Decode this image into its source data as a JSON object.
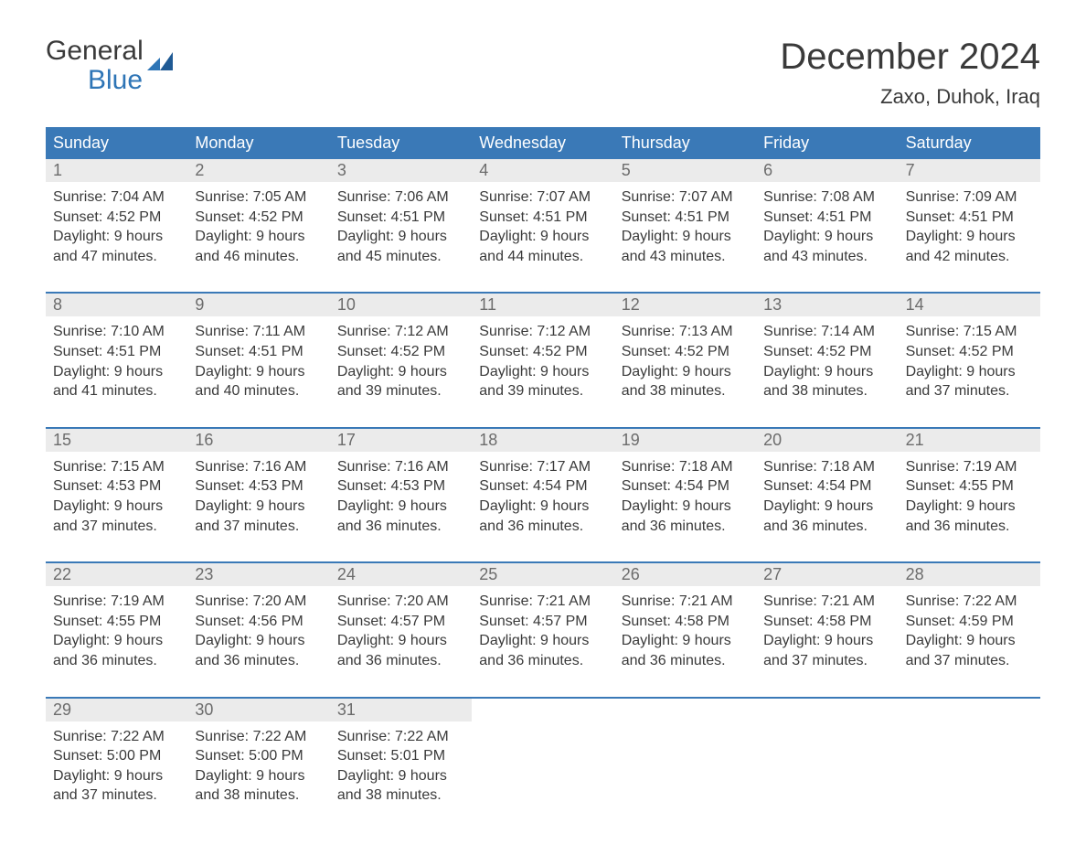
{
  "logo": {
    "word1": "General",
    "word2": "Blue"
  },
  "title": "December 2024",
  "location": "Zaxo, Duhok, Iraq",
  "colors": {
    "header_bg": "#3a79b7",
    "header_text": "#ffffff",
    "daynum_bg": "#ebebeb",
    "daynum_text": "#6c6c6c",
    "body_text": "#3a3a3a",
    "rule": "#3a79b7",
    "logo_blue": "#2e75b6"
  },
  "weekdays": [
    "Sunday",
    "Monday",
    "Tuesday",
    "Wednesday",
    "Thursday",
    "Friday",
    "Saturday"
  ],
  "weeks": [
    [
      {
        "day": "1",
        "sunrise": "7:04 AM",
        "sunset": "4:52 PM",
        "daylight": "9 hours and 47 minutes."
      },
      {
        "day": "2",
        "sunrise": "7:05 AM",
        "sunset": "4:52 PM",
        "daylight": "9 hours and 46 minutes."
      },
      {
        "day": "3",
        "sunrise": "7:06 AM",
        "sunset": "4:51 PM",
        "daylight": "9 hours and 45 minutes."
      },
      {
        "day": "4",
        "sunrise": "7:07 AM",
        "sunset": "4:51 PM",
        "daylight": "9 hours and 44 minutes."
      },
      {
        "day": "5",
        "sunrise": "7:07 AM",
        "sunset": "4:51 PM",
        "daylight": "9 hours and 43 minutes."
      },
      {
        "day": "6",
        "sunrise": "7:08 AM",
        "sunset": "4:51 PM",
        "daylight": "9 hours and 43 minutes."
      },
      {
        "day": "7",
        "sunrise": "7:09 AM",
        "sunset": "4:51 PM",
        "daylight": "9 hours and 42 minutes."
      }
    ],
    [
      {
        "day": "8",
        "sunrise": "7:10 AM",
        "sunset": "4:51 PM",
        "daylight": "9 hours and 41 minutes."
      },
      {
        "day": "9",
        "sunrise": "7:11 AM",
        "sunset": "4:51 PM",
        "daylight": "9 hours and 40 minutes."
      },
      {
        "day": "10",
        "sunrise": "7:12 AM",
        "sunset": "4:52 PM",
        "daylight": "9 hours and 39 minutes."
      },
      {
        "day": "11",
        "sunrise": "7:12 AM",
        "sunset": "4:52 PM",
        "daylight": "9 hours and 39 minutes."
      },
      {
        "day": "12",
        "sunrise": "7:13 AM",
        "sunset": "4:52 PM",
        "daylight": "9 hours and 38 minutes."
      },
      {
        "day": "13",
        "sunrise": "7:14 AM",
        "sunset": "4:52 PM",
        "daylight": "9 hours and 38 minutes."
      },
      {
        "day": "14",
        "sunrise": "7:15 AM",
        "sunset": "4:52 PM",
        "daylight": "9 hours and 37 minutes."
      }
    ],
    [
      {
        "day": "15",
        "sunrise": "7:15 AM",
        "sunset": "4:53 PM",
        "daylight": "9 hours and 37 minutes."
      },
      {
        "day": "16",
        "sunrise": "7:16 AM",
        "sunset": "4:53 PM",
        "daylight": "9 hours and 37 minutes."
      },
      {
        "day": "17",
        "sunrise": "7:16 AM",
        "sunset": "4:53 PM",
        "daylight": "9 hours and 36 minutes."
      },
      {
        "day": "18",
        "sunrise": "7:17 AM",
        "sunset": "4:54 PM",
        "daylight": "9 hours and 36 minutes."
      },
      {
        "day": "19",
        "sunrise": "7:18 AM",
        "sunset": "4:54 PM",
        "daylight": "9 hours and 36 minutes."
      },
      {
        "day": "20",
        "sunrise": "7:18 AM",
        "sunset": "4:54 PM",
        "daylight": "9 hours and 36 minutes."
      },
      {
        "day": "21",
        "sunrise": "7:19 AM",
        "sunset": "4:55 PM",
        "daylight": "9 hours and 36 minutes."
      }
    ],
    [
      {
        "day": "22",
        "sunrise": "7:19 AM",
        "sunset": "4:55 PM",
        "daylight": "9 hours and 36 minutes."
      },
      {
        "day": "23",
        "sunrise": "7:20 AM",
        "sunset": "4:56 PM",
        "daylight": "9 hours and 36 minutes."
      },
      {
        "day": "24",
        "sunrise": "7:20 AM",
        "sunset": "4:57 PM",
        "daylight": "9 hours and 36 minutes."
      },
      {
        "day": "25",
        "sunrise": "7:21 AM",
        "sunset": "4:57 PM",
        "daylight": "9 hours and 36 minutes."
      },
      {
        "day": "26",
        "sunrise": "7:21 AM",
        "sunset": "4:58 PM",
        "daylight": "9 hours and 36 minutes."
      },
      {
        "day": "27",
        "sunrise": "7:21 AM",
        "sunset": "4:58 PM",
        "daylight": "9 hours and 37 minutes."
      },
      {
        "day": "28",
        "sunrise": "7:22 AM",
        "sunset": "4:59 PM",
        "daylight": "9 hours and 37 minutes."
      }
    ],
    [
      {
        "day": "29",
        "sunrise": "7:22 AM",
        "sunset": "5:00 PM",
        "daylight": "9 hours and 37 minutes."
      },
      {
        "day": "30",
        "sunrise": "7:22 AM",
        "sunset": "5:00 PM",
        "daylight": "9 hours and 38 minutes."
      },
      {
        "day": "31",
        "sunrise": "7:22 AM",
        "sunset": "5:01 PM",
        "daylight": "9 hours and 38 minutes."
      },
      null,
      null,
      null,
      null
    ]
  ],
  "labels": {
    "sunrise": "Sunrise:",
    "sunset": "Sunset:",
    "daylight": "Daylight:"
  }
}
